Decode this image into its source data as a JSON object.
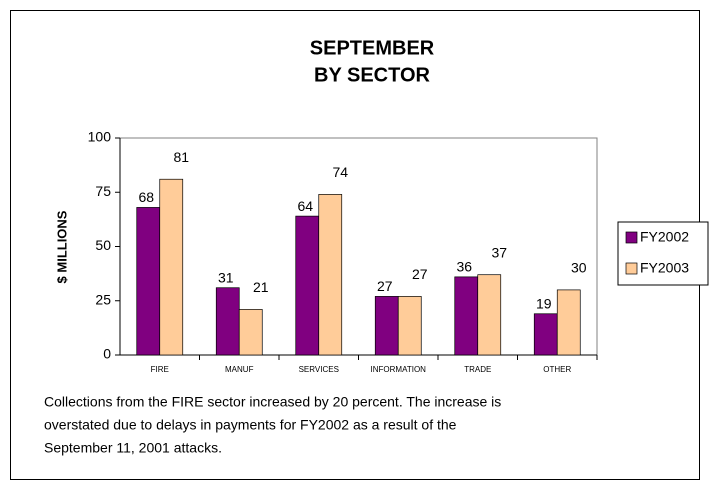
{
  "chart_data": {
    "type": "bar",
    "title": [
      "SEPTEMBER",
      "BY SECTOR"
    ],
    "y_label": "$ MILLIONS",
    "categories": [
      "FIRE",
      "MANUF",
      "SERVICES",
      "INFORMATION",
      "TRADE",
      "OTHER"
    ],
    "series": [
      {
        "name": "FY2002",
        "color": "#800080",
        "values": [
          68,
          31,
          64,
          27,
          36,
          19
        ]
      },
      {
        "name": "FY2003",
        "color": "#ffcc99",
        "values": [
          81,
          21,
          74,
          27,
          37,
          30
        ]
      }
    ],
    "ylim": [
      0,
      100
    ],
    "yticks": [
      0,
      25,
      50,
      75,
      100
    ],
    "legend": "right",
    "caption": [
      "Collections from the FIRE sector increased by 20 percent.  The increase is",
      "overstated due to delays in payments for FY2002 as a result of the",
      "September 11, 2001 attacks."
    ]
  }
}
